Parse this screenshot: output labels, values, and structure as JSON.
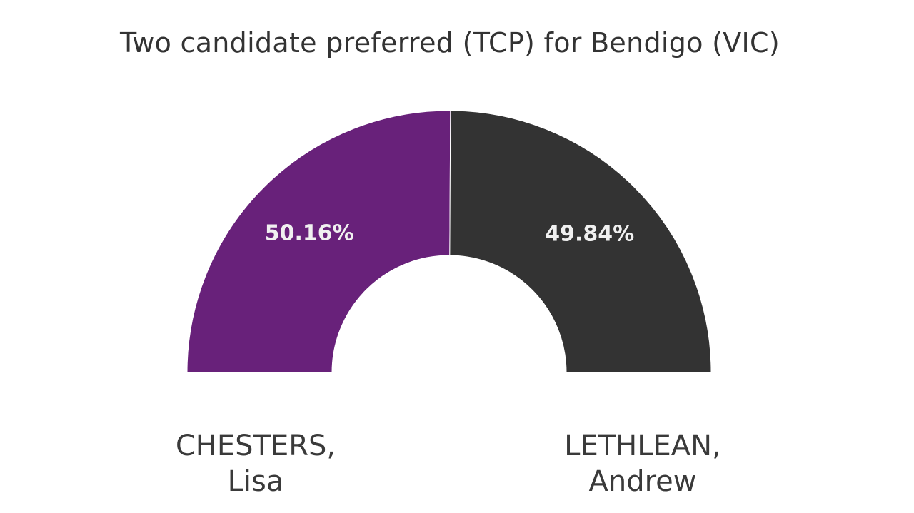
{
  "chart_data": {
    "type": "pie",
    "title": "Two candidate preferred (TCP) for Bendigo (VIC)",
    "subtype": "semi-donut",
    "legend_position": "bottom",
    "slices": [
      {
        "name_line1": "CHESTERS,",
        "name_line2": "Lisa",
        "value": 50.16,
        "label": "50.16%",
        "color": "#68217a"
      },
      {
        "name_line1": "LETHLEAN,",
        "name_line2": "Andrew",
        "value": 49.84,
        "label": "49.84%",
        "color": "#333333"
      }
    ]
  }
}
